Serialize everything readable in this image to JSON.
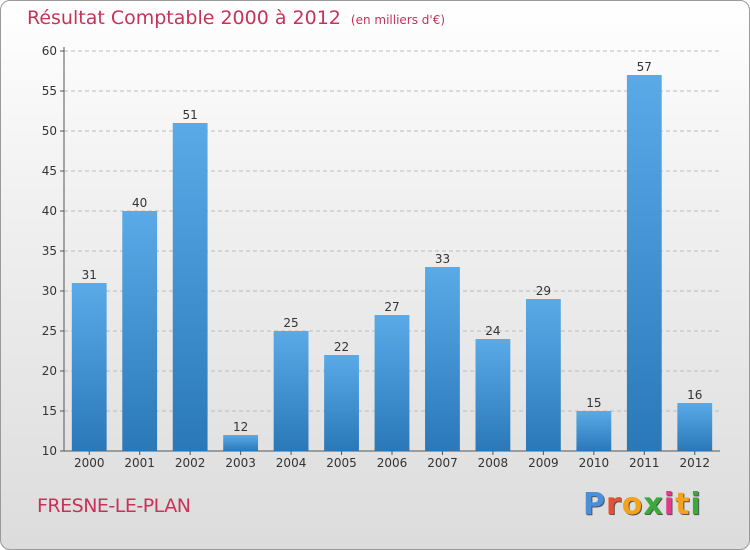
{
  "chart_data": {
    "type": "bar",
    "title": "Résultat Comptable 2000 à 2012",
    "unit_label": "(en milliers d'€)",
    "categories": [
      "2000",
      "2001",
      "2002",
      "2003",
      "2004",
      "2005",
      "2006",
      "2007",
      "2008",
      "2009",
      "2010",
      "2011",
      "2012"
    ],
    "values": [
      31,
      40,
      51,
      12,
      25,
      22,
      27,
      33,
      24,
      29,
      15,
      57,
      16
    ],
    "ylim": [
      10,
      60
    ],
    "yticks": [
      10,
      15,
      20,
      25,
      30,
      35,
      40,
      45,
      50,
      55,
      60
    ],
    "xlabel": "",
    "ylabel": "",
    "grid": true,
    "colors": {
      "bar_top": "#5aaae8",
      "bar_bottom": "#2a78b8",
      "title": "#c8325a",
      "grid": "#bbbbbb"
    }
  },
  "footer": {
    "commune": "FRESNE-LE-PLAN"
  },
  "logo": {
    "letters": [
      "P",
      "r",
      "o",
      "x",
      "i",
      "t",
      "i"
    ],
    "colors": [
      "#4a90d9",
      "#e8502f",
      "#f3a21b",
      "#3aaa3a",
      "#e03b8a",
      "#f3a21b",
      "#3aaa3a"
    ]
  }
}
